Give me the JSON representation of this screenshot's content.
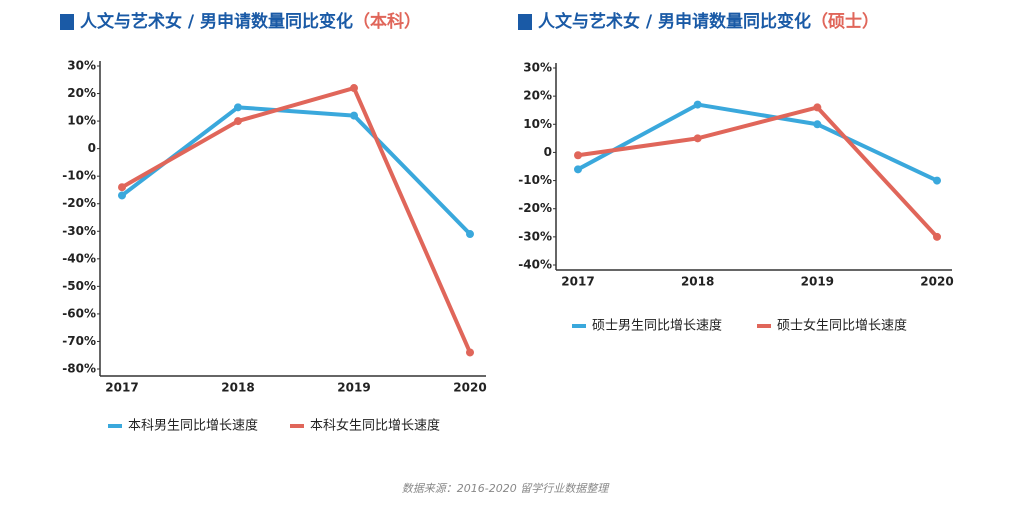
{
  "chart_data": [
    {
      "type": "line",
      "title": "人文与艺术女 / 男申请数量同比变化",
      "title_highlight": "（本科）",
      "categories": [
        "2017",
        "2018",
        "2019",
        "2020"
      ],
      "series": [
        {
          "name": "本科男生同比增长速度",
          "color": "#3aa8dc",
          "values": [
            -17,
            15,
            12,
            -31
          ]
        },
        {
          "name": "本科女生同比增长速度",
          "color": "#e0665a",
          "values": [
            -14,
            10,
            22,
            -74
          ]
        }
      ],
      "ylim": [
        -80,
        30
      ],
      "yticks": [
        {
          "value": 30,
          "label": "30%"
        },
        {
          "value": 20,
          "label": "20%"
        },
        {
          "value": 10,
          "label": "10%"
        },
        0,
        {
          "value": -10,
          "label": "-10%"
        },
        {
          "value": -20,
          "label": "-20%"
        },
        {
          "value": -30,
          "label": "-30%"
        },
        {
          "value": -40,
          "label": "-40%"
        },
        {
          "value": -50,
          "label": "-50%"
        },
        {
          "value": -60,
          "label": "-60%"
        },
        {
          "value": -70,
          "label": "-70%"
        },
        {
          "value": -80,
          "label": "-80%"
        }
      ]
    },
    {
      "type": "line",
      "title": "人文与艺术女 / 男申请数量同比变化",
      "title_highlight": "（硕士）",
      "categories": [
        "2017",
        "2018",
        "2019",
        "2020"
      ],
      "series": [
        {
          "name": "硕士男生同比增长速度",
          "color": "#3aa8dc",
          "values": [
            -6,
            17,
            10,
            -10
          ]
        },
        {
          "name": "硕士女生同比增长速度",
          "color": "#e0665a",
          "values": [
            -1,
            5,
            16,
            -30
          ]
        }
      ],
      "ylim": [
        -40,
        30
      ],
      "yticks": [
        {
          "value": 30,
          "label": "30%"
        },
        {
          "value": 20,
          "label": "20%"
        },
        {
          "value": 10,
          "label": "10%"
        },
        0,
        {
          "value": -10,
          "label": "-10%"
        },
        {
          "value": -20,
          "label": "-20%"
        },
        {
          "value": -30,
          "label": "-30%"
        },
        {
          "value": -40,
          "label": "-40%"
        }
      ]
    }
  ],
  "source": "数据来源：2016-2020 留学行业数据整理"
}
